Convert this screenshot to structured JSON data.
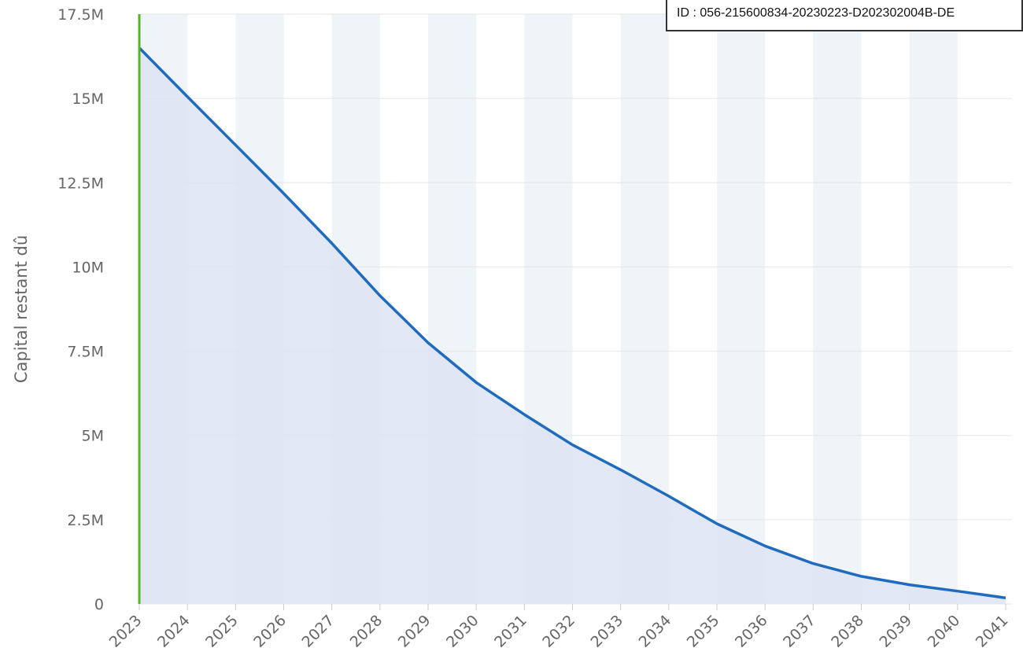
{
  "stamp": {
    "text": "ID : 056-215600834-20230223-D202302004B-DE"
  },
  "chart_data": {
    "type": "area",
    "title": "",
    "xlabel": "",
    "ylabel": "Capital restant dû",
    "x": [
      "2023",
      "2024",
      "2025",
      "2026",
      "2027",
      "2028",
      "2029",
      "2030",
      "2031",
      "2032",
      "2033",
      "2034",
      "2035",
      "2036",
      "2037",
      "2038",
      "2039",
      "2040",
      "2041"
    ],
    "series": [
      {
        "values": [
          16.5,
          15.05,
          13.62,
          12.18,
          10.7,
          9.15,
          7.75,
          6.57,
          5.62,
          4.72,
          3.98,
          3.2,
          2.38,
          1.72,
          1.2,
          0.82,
          0.57,
          0.38,
          0.18
        ]
      }
    ],
    "ylim": [
      0,
      17.5
    ],
    "yticks": [
      0,
      2.5,
      5,
      7.5,
      10,
      12.5,
      15,
      17.5
    ],
    "ytick_labels": [
      "0",
      "2.5M",
      "5M",
      "7.5M",
      "10M",
      "12.5M",
      "15M",
      "17.5M"
    ],
    "grid": true,
    "colors": {
      "line": "#1f6bbf",
      "area": "#dde3f2",
      "marker": "#55b52b",
      "band": "#eef4f7",
      "grid": "#e6e6e6"
    }
  }
}
